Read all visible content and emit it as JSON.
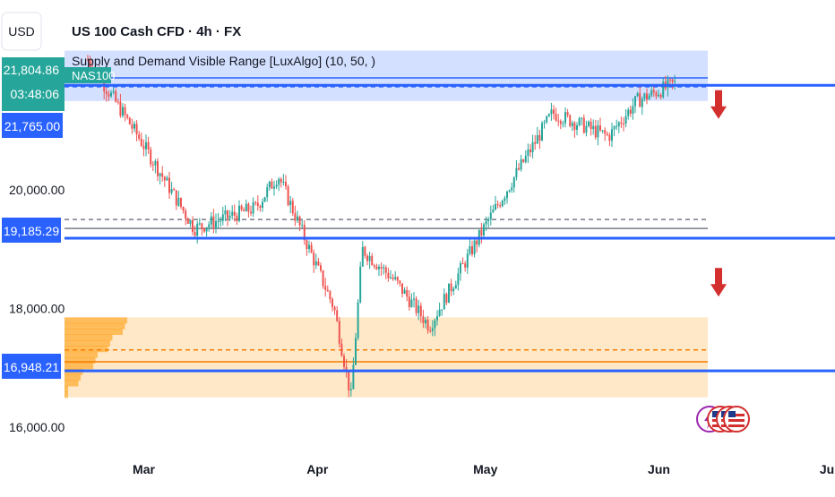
{
  "header": {
    "currency": "USD",
    "title": "US 100 Cash CFD · 4h · FX",
    "indicator": "Supply and Demand Visible Range [LuxAlgo] (10, 50, )"
  },
  "price_tags": {
    "current": {
      "price": "21,804.86",
      "countdown": "03:48:06",
      "symbol": "NAS100",
      "color": "#26a69a"
    },
    "upper_level": {
      "text": "21,765.00",
      "color": "#2962ff"
    },
    "mid_level": {
      "text": "19,185.29",
      "color": "#2962ff"
    },
    "lower_level": {
      "text": "16,948.21",
      "color": "#2962ff"
    }
  },
  "watermark_icons": [
    "lightning-badge-icon",
    "us-flag-icon",
    "us-flag-icon",
    "us-flag-icon"
  ],
  "chart_data": {
    "type": "candlestick",
    "y_ticks": [
      "20,000.00",
      "18,000.00",
      "16,000.00"
    ],
    "x_ticks": [
      "Mar",
      "Apr",
      "May",
      "Jun",
      "Ju"
    ],
    "ylim": [
      15650,
      22600
    ],
    "key_points": [
      {
        "date": "2025-02-19",
        "price": 22200
      },
      {
        "date": "2025-02-28",
        "price": 20900
      },
      {
        "date": "2025-03-10",
        "price": 19350
      },
      {
        "date": "2025-03-21",
        "price": 19700
      },
      {
        "date": "2025-03-25",
        "price": 20250
      },
      {
        "date": "2025-04-04",
        "price": 18000
      },
      {
        "date": "2025-04-07",
        "price": 16500
      },
      {
        "date": "2025-04-09",
        "price": 19000
      },
      {
        "date": "2025-04-15",
        "price": 18450
      },
      {
        "date": "2025-04-21",
        "price": 17700
      },
      {
        "date": "2025-05-01",
        "price": 19400
      },
      {
        "date": "2025-05-13",
        "price": 21300
      },
      {
        "date": "2025-05-23",
        "price": 20900
      },
      {
        "date": "2025-05-28",
        "price": 21500
      },
      {
        "date": "2025-06-04",
        "price": 21800
      }
    ],
    "supply_zone": {
      "from": 21500,
      "to": 22350,
      "color": "#2962ff"
    },
    "demand_zone": {
      "from": 16500,
      "to": 17850,
      "color": "#ff9800"
    },
    "horizontal_levels": [
      {
        "price": 21765.0,
        "color": "#2962ff",
        "style": "solid"
      },
      {
        "price": 19185.29,
        "color": "#2962ff",
        "style": "solid"
      },
      {
        "price": 16948.21,
        "color": "#2962ff",
        "style": "solid"
      }
    ],
    "supply_zone_lines": [
      {
        "price": 21890,
        "color": "#2962ff",
        "style": "solid"
      },
      {
        "price": 21740,
        "color": "#2962ff",
        "style": "dashed"
      }
    ],
    "equilibrium_lines": [
      {
        "price": 19500,
        "color": "#787b86",
        "style": "dashed"
      },
      {
        "price": 19350,
        "color": "#787b86",
        "style": "solid"
      }
    ],
    "demand_zone_lines": [
      {
        "price": 17300,
        "color": "#f57c00",
        "style": "dashed"
      },
      {
        "price": 17100,
        "color": "#f57c00",
        "style": "solid"
      }
    ],
    "arrows": [
      {
        "direction": "down",
        "price": 21350,
        "color": "#d32f2f"
      },
      {
        "direction": "down",
        "price": 18350,
        "color": "#d32f2f"
      }
    ],
    "colors": {
      "up": "#26a69a",
      "down": "#ef5350"
    }
  }
}
